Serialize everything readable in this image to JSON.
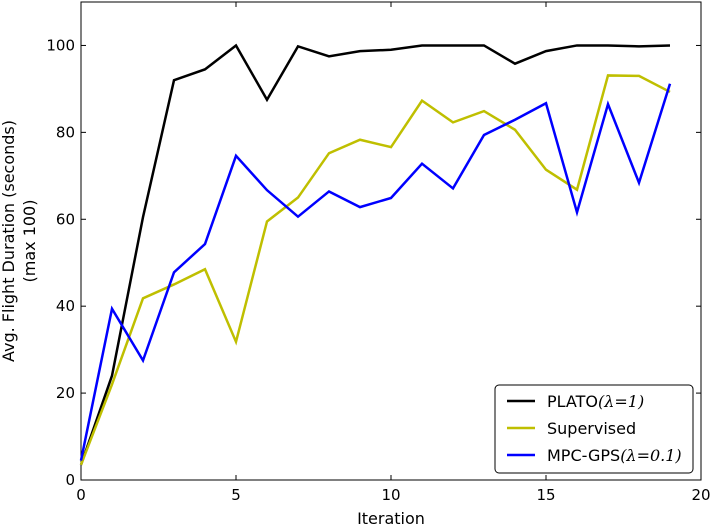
{
  "chart_data": {
    "type": "line",
    "xlabel": "Iteration",
    "ylabel_lines": [
      "Avg. Flight Duration (seconds)",
      "(max 100)"
    ],
    "xlim": [
      0,
      20
    ],
    "ylim": [
      0,
      110
    ],
    "xticks": [
      0,
      5,
      10,
      15,
      20
    ],
    "yticks": [
      0,
      20,
      40,
      60,
      80,
      100
    ],
    "grid": false,
    "legend_position": "bottom-right",
    "x": [
      0,
      1,
      2,
      3,
      4,
      5,
      6,
      7,
      8,
      9,
      10,
      11,
      12,
      13,
      14,
      15,
      16,
      17,
      18,
      19
    ],
    "series": [
      {
        "name": "PLATO(λ=1)",
        "name_prefix": "PLATO",
        "name_math": "(λ=1)",
        "color": "#000000",
        "values": [
          3.5,
          24,
          60.5,
          92,
          94.5,
          100,
          87.5,
          99.8,
          97.5,
          98.7,
          99,
          100,
          100,
          100,
          95.8,
          98.7,
          100,
          100,
          99.8,
          100
        ]
      },
      {
        "name": "Supervised",
        "name_prefix": "Supervised",
        "name_math": "",
        "color": "#bfbf00",
        "values": [
          3.5,
          22,
          41.8,
          45,
          48.5,
          31.8,
          59.5,
          65,
          75.2,
          78.3,
          76.6,
          87.3,
          82.3,
          84.9,
          80.6,
          71.4,
          66.8,
          93.1,
          93,
          89.3
        ]
      },
      {
        "name": "MPC-GPS(λ=0.1)",
        "name_prefix": "MPC-GPS",
        "name_math": "(λ=0.1)",
        "color": "#0000ff",
        "values": [
          4.5,
          39.4,
          27.5,
          47.8,
          54.3,
          74.6,
          66.7,
          60.6,
          66.4,
          62.8,
          64.9,
          72.8,
          67.1,
          79.4,
          82.9,
          86.7,
          61.6,
          86.5,
          68.4,
          91.2
        ]
      }
    ]
  }
}
